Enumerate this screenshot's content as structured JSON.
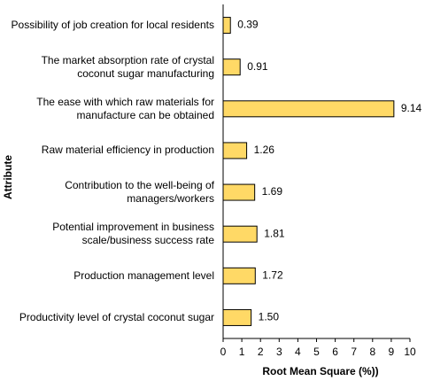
{
  "chart_data": {
    "type": "barh",
    "xlabel": "Root Mean Square (%))",
    "ylabel": "Attribute",
    "categories": [
      "Possibility of job creation for local residents",
      "The market absorption rate of crystal coconut sugar manufacturing",
      "The ease with which raw materials for manufacture can be obtained",
      "Raw material efficiency in production",
      "Contribution to the well-being of managers/workers",
      "Potential improvement in business scale/business success rate",
      "Production management level",
      "Productivity level of crystal coconut sugar"
    ],
    "values": [
      0.39,
      0.91,
      9.14,
      1.26,
      1.69,
      1.81,
      1.72,
      1.5
    ],
    "value_labels": [
      "0.39",
      "0.91",
      "9.14",
      "1.26",
      "1.69",
      "1.81",
      "1.72",
      "1.50"
    ],
    "color": "#ffd966",
    "xlim": [
      0,
      10
    ],
    "xticks": [
      0,
      1,
      2,
      3,
      4,
      5,
      6,
      7,
      8,
      9,
      10
    ]
  }
}
